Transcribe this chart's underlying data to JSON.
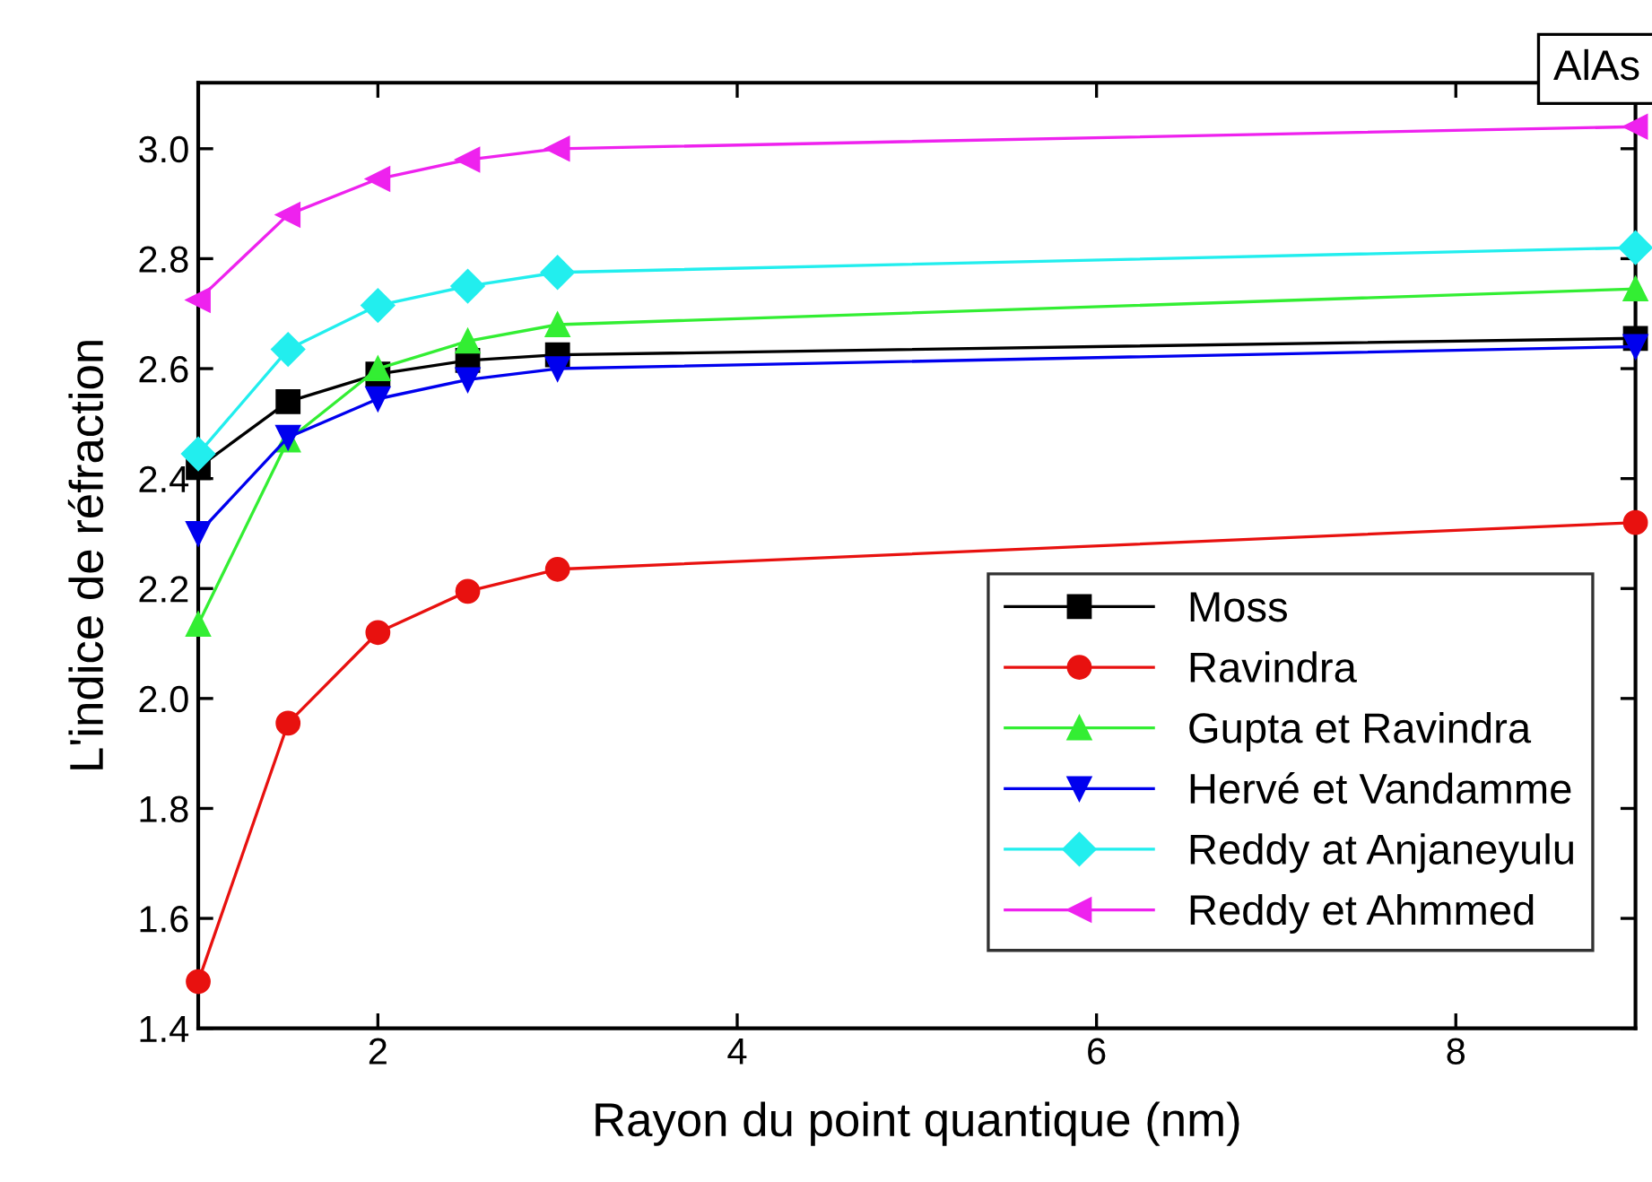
{
  "chart_data": {
    "type": "line",
    "xlabel": "Rayon du point quantique (nm)",
    "ylabel": "L'indice de réfraction",
    "annotations": [
      "AlAs"
    ],
    "x": [
      1,
      1.5,
      2,
      2.5,
      3,
      9
    ],
    "xlim": [
      1,
      9
    ],
    "xticks": [
      2,
      4,
      6,
      8
    ],
    "ylim": [
      1.4,
      3.12
    ],
    "yticks": [
      {
        "value": 1.4,
        "label": "1.4"
      },
      {
        "value": 1.6,
        "label": "1.6"
      },
      {
        "value": 1.8,
        "label": "1.8"
      },
      {
        "value": 2.0,
        "label": "2.0"
      },
      {
        "value": 2.2,
        "label": "2.2"
      },
      {
        "value": 2.4,
        "label": "2.4"
      },
      {
        "value": 2.6,
        "label": "2.6"
      },
      {
        "value": 2.8,
        "label": "2.8"
      },
      {
        "value": 3.0,
        "label": "3.0"
      }
    ],
    "legend": "bottom right",
    "grid": false,
    "line_style": "solid",
    "series": [
      {
        "name": "Moss",
        "color": "#000000",
        "marker": "square",
        "values": [
          2.42,
          2.54,
          2.59,
          2.615,
          2.625,
          2.655
        ]
      },
      {
        "name": "Ravindra",
        "color": "#e8110f",
        "marker": "circle",
        "values": [
          1.485,
          1.955,
          2.12,
          2.195,
          2.235,
          2.32
        ]
      },
      {
        "name": "Gupta et Ravindra",
        "color": "#33ee33",
        "marker": "triangle",
        "values": [
          2.135,
          2.47,
          2.6,
          2.65,
          2.68,
          2.745
        ]
      },
      {
        "name": "Hervé et Vandamme",
        "color": "#0000ee",
        "marker": "triangle_down",
        "values": [
          2.3,
          2.475,
          2.545,
          2.58,
          2.6,
          2.64
        ]
      },
      {
        "name": "Reddy at Anjaneyulu",
        "color": "#22eeee",
        "marker": "diamond",
        "values": [
          2.445,
          2.635,
          2.715,
          2.75,
          2.775,
          2.82
        ]
      },
      {
        "name": "Reddy et Ahmmed",
        "color": "#ee22ee",
        "marker": "triangle_left",
        "values": [
          2.725,
          2.88,
          2.945,
          2.98,
          3.0,
          3.04
        ]
      }
    ]
  }
}
